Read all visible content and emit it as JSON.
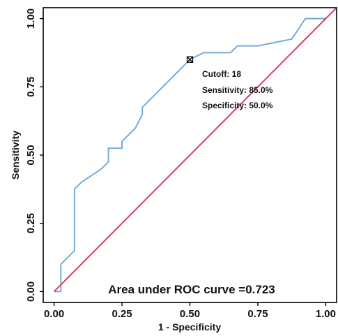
{
  "chart_data": {
    "type": "line",
    "title": "",
    "xlabel": "1 - Specificity",
    "ylabel": "Sensitivity",
    "xlim": [
      -0.04,
      1.04
    ],
    "ylim": [
      -0.04,
      1.04
    ],
    "x_ticks": [
      0,
      0.25,
      0.5,
      0.75,
      1
    ],
    "x_tick_labels": [
      "0.00",
      "0.25",
      "0.50",
      "0.75",
      "1.00"
    ],
    "y_ticks": [
      0,
      0.25,
      0.5,
      0.75,
      1
    ],
    "y_tick_labels": [
      "0.00",
      "0.25",
      "0.50",
      "0.75",
      "1.00"
    ],
    "grid": false,
    "series": [
      {
        "color": "#6fa8dc",
        "x": [
          0,
          0.025,
          0.025,
          0.075,
          0.075,
          0.1,
          0.175,
          0.2,
          0.2,
          0.25,
          0.25,
          0.3,
          0.325,
          0.325,
          0.5,
          0.55,
          0.65,
          0.675,
          0.675,
          0.75,
          0.875,
          0.925,
          1
        ],
        "y": [
          0,
          0,
          0.1,
          0.15,
          0.375,
          0.4,
          0.45,
          0.475,
          0.525,
          0.525,
          0.55,
          0.6,
          0.65,
          0.675,
          0.85,
          0.875,
          0.875,
          0.9,
          0.9,
          0.9,
          0.925,
          1,
          1
        ]
      },
      {
        "color": "#e03c5a",
        "x": [
          0,
          1.04
        ],
        "y": [
          0,
          1.04
        ]
      }
    ],
    "cutoff_point": {
      "x": 0.5,
      "y": 0.85
    },
    "annotations": {
      "cutoff": "Cutoff: 18",
      "sensitivity": "Sensitivity: 85.0%",
      "specificity": "Specificity: 50.0%",
      "auc": "Area under ROC curve =0.723"
    }
  }
}
